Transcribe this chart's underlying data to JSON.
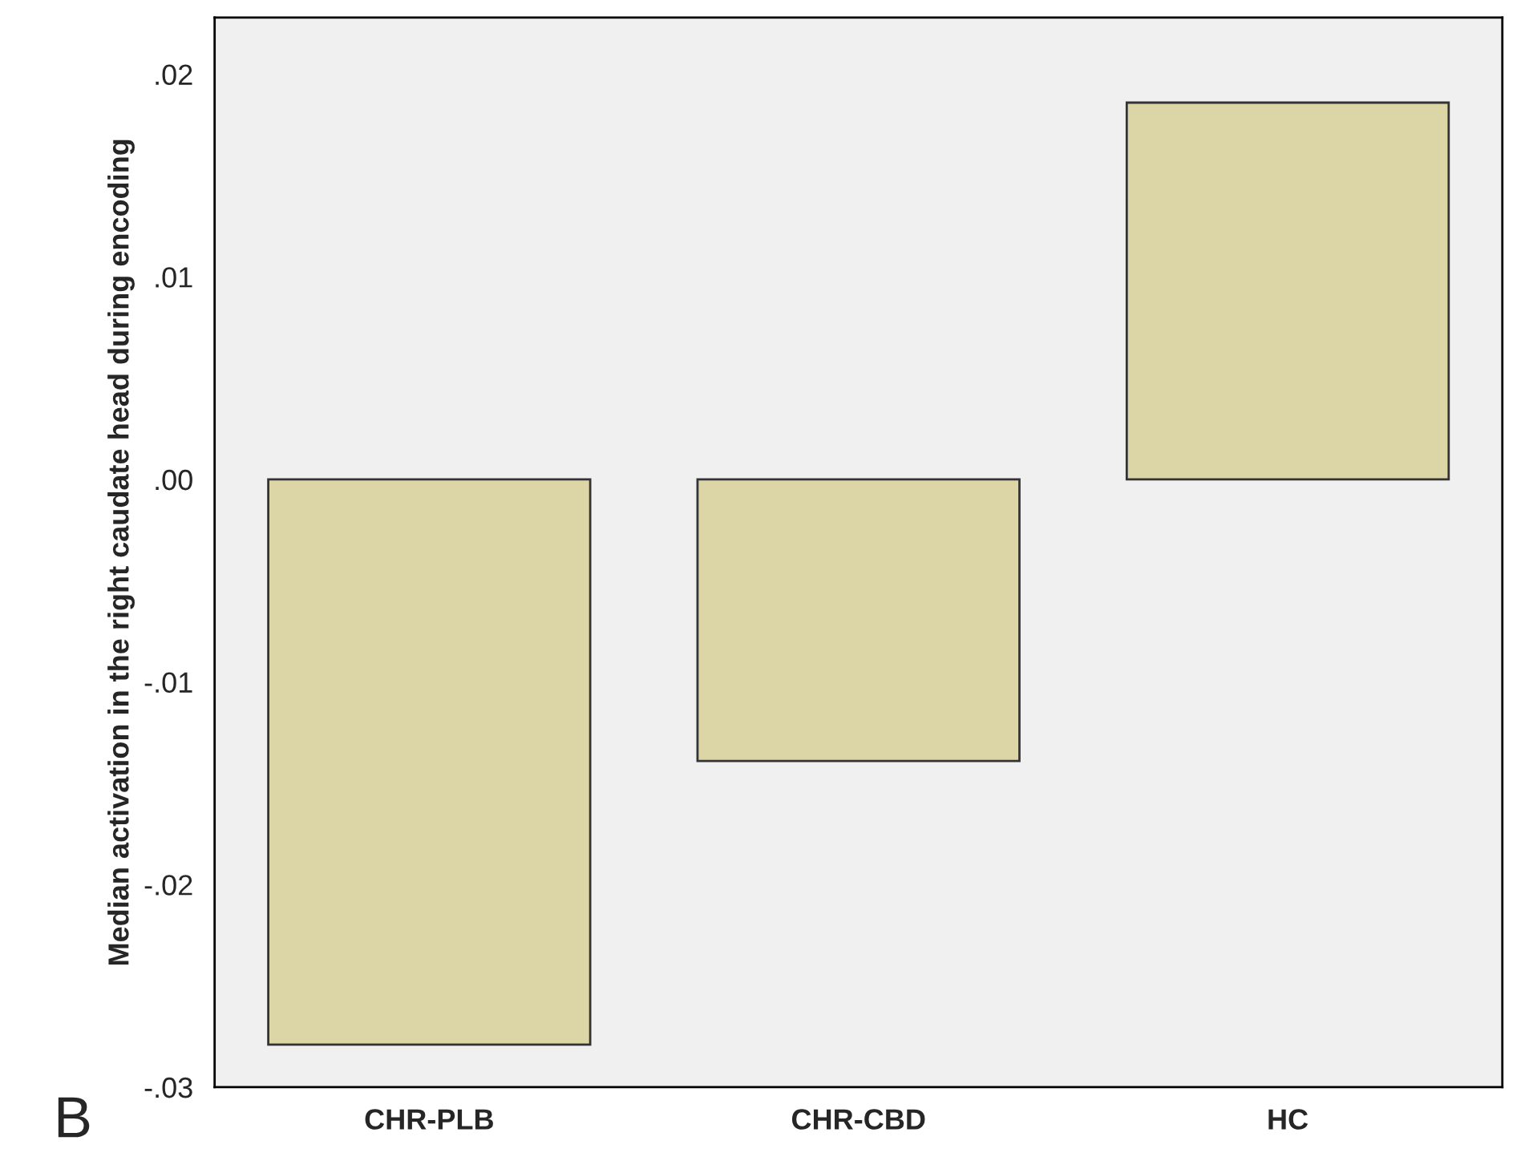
{
  "chart_data": {
    "type": "bar",
    "ylabel": "Median activation in the right caudate head during encoding",
    "categories": [
      "CHR-PLB",
      "CHR-CBD",
      "HC"
    ],
    "values": [
      -0.0279,
      -0.0139,
      0.0186
    ],
    "color": "#dcd6a6",
    "ylim": [
      -0.03,
      0.0228
    ],
    "yticks": [
      {
        "value": -0.03,
        "label": "-.03"
      },
      {
        "value": -0.02,
        "label": "-.02"
      },
      {
        "value": -0.01,
        "label": "-.01"
      },
      {
        "value": 0,
        "label": ".00"
      },
      {
        "value": 0.01,
        "label": ".01"
      },
      {
        "value": 0.02,
        "label": ".02"
      }
    ],
    "grid": false,
    "annotations": [
      "B"
    ]
  }
}
